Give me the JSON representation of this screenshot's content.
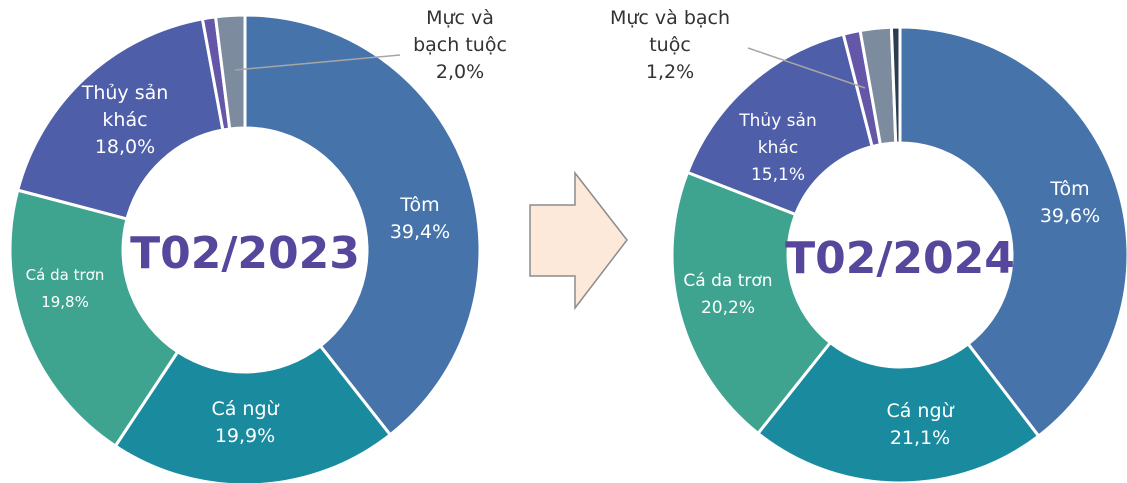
{
  "chart_data": [
    {
      "type": "donut",
      "title": "T02/2023",
      "categories": [
        "Tôm",
        "Cá ngừ",
        "Cá da trơn",
        "Thủy sản khác",
        null,
        "Mực và bạch tuộc"
      ],
      "values": [
        39.4,
        19.9,
        19.8,
        18.0,
        0.9,
        2.0
      ],
      "value_labels": [
        "39,4%",
        "19,9%",
        "19,8%",
        "18,0%",
        null,
        "2,0%"
      ],
      "colors": [
        "#4674aa",
        "#1a8a9f",
        "#3fa48f",
        "#4e5ea8",
        "#6457a8",
        "#7d8b9f"
      ]
    },
    {
      "type": "donut",
      "title": "T02/2024",
      "categories": [
        "Tôm",
        "Cá ngừ",
        "Cá da trơn",
        "Thủy sản khác",
        "Mực và bạch tuộc",
        null,
        null
      ],
      "values": [
        39.6,
        21.1,
        20.2,
        15.1,
        1.2,
        2.2,
        0.6
      ],
      "value_labels": [
        "39,6%",
        "21,1%",
        "20,2%",
        "15,1%",
        "1,2%",
        null,
        null
      ],
      "colors": [
        "#4674aa",
        "#1a8a9f",
        "#3fa48f",
        "#4e5ea8",
        "#6457a8",
        "#7d8b9f",
        "#2b3d4f"
      ]
    }
  ]
}
